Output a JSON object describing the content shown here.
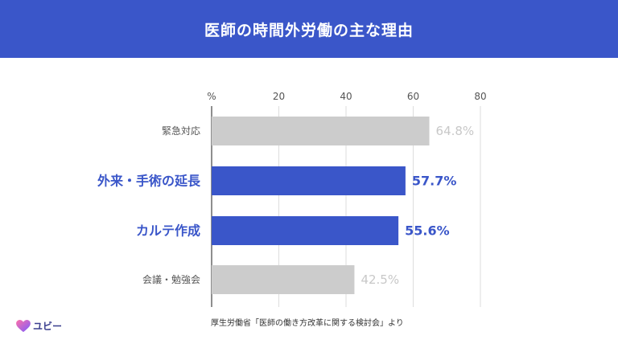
{
  "chart_data": {
    "type": "bar",
    "orientation": "horizontal",
    "title": "医師の時間外労働の主な理由",
    "axis_unit": "%",
    "xlim": [
      0,
      80
    ],
    "ticks": [
      0,
      20,
      40,
      60,
      80
    ],
    "tick_labels": [
      "%",
      "20",
      "40",
      "60",
      "80"
    ],
    "grid": true,
    "categories": [
      "緊急対応",
      "外来・手術の延長",
      "カルテ作成",
      "会議・勉強会"
    ],
    "values": [
      64.8,
      57.7,
      55.6,
      42.5
    ],
    "value_labels": [
      "64.8%",
      "57.7%",
      "55.6%",
      "42.5%"
    ],
    "highlighted": [
      false,
      true,
      true,
      false
    ],
    "colors": {
      "highlight": "#3a56c9",
      "muted_bar": "#cccccc",
      "muted_label": "#c8c8c8",
      "muted_category": "#555555"
    }
  },
  "footer": {
    "source": "厚生労働省「医師の働き方改革に関する検討会」より",
    "logo_text": "ユビー",
    "logo_icon": "heart-icon"
  }
}
